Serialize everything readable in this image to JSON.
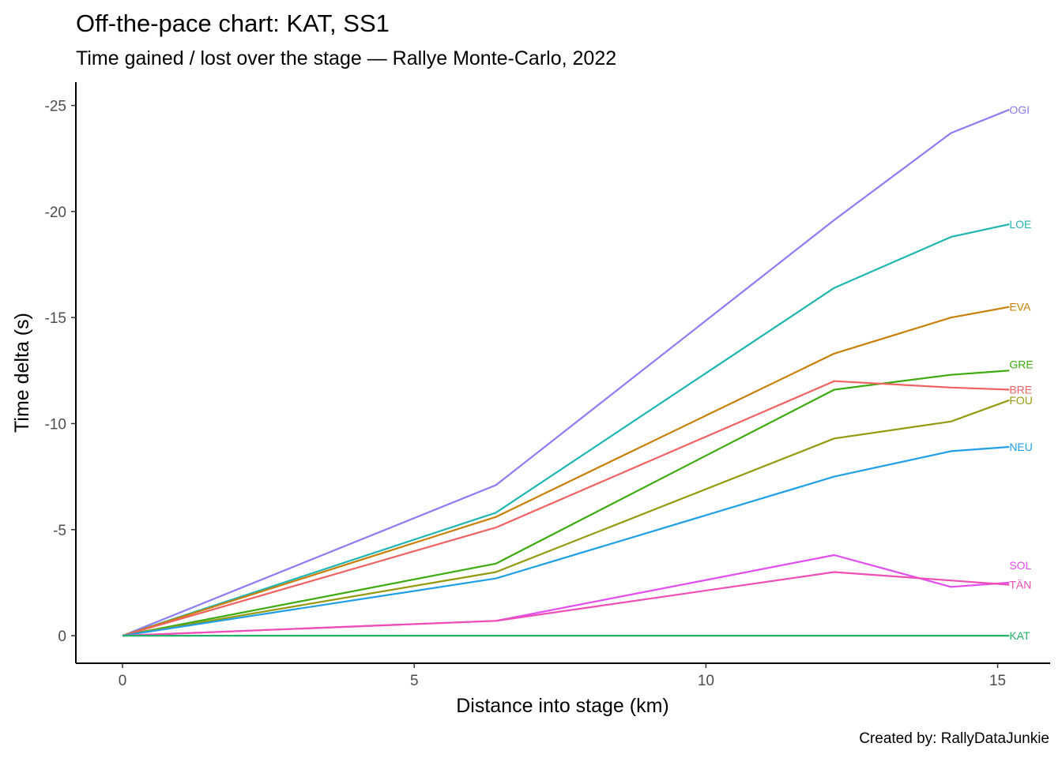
{
  "chart_data": {
    "type": "line",
    "title": "Off-the-pace chart: KAT, SS1",
    "subtitle": "Time gained / lost over the stage — Rallye Monte-Carlo, 2022",
    "xlabel": "Distance into stage (km)",
    "ylabel": "Time delta (s)",
    "caption": "Created by: RallyDataJunkie",
    "x": [
      0,
      6.4,
      12.2,
      14.2,
      15.2
    ],
    "xlim": [
      -0.8,
      15.9
    ],
    "ylim": [
      1.3,
      -26.1
    ],
    "y_reversed": true,
    "x_ticks": [
      0,
      5,
      10,
      15
    ],
    "y_ticks": [
      0,
      -5,
      -10,
      -15,
      -20,
      -25
    ],
    "grid": false,
    "legend": "none",
    "series": [
      {
        "name": "OGI",
        "color": "#8B7CF6",
        "values": [
          0,
          -7.1,
          -19.6,
          -23.7,
          -24.8
        ]
      },
      {
        "name": "LOE",
        "color": "#1FB6B2",
        "values": [
          0,
          -5.8,
          -16.4,
          -18.8,
          -19.4
        ]
      },
      {
        "name": "EVA",
        "color": "#C98009",
        "values": [
          0,
          -5.6,
          -13.3,
          -15.0,
          -15.5
        ]
      },
      {
        "name": "GRE",
        "color": "#3DAA10",
        "values": [
          0,
          -3.4,
          -11.6,
          -12.3,
          -12.5
        ]
      },
      {
        "name": "BRE",
        "color": "#F06262",
        "values": [
          0,
          -5.1,
          -12.0,
          -11.7,
          -11.6
        ]
      },
      {
        "name": "FOU",
        "color": "#949A0D",
        "values": [
          0,
          -3.0,
          -9.3,
          -10.1,
          -11.1
        ]
      },
      {
        "name": "NEU",
        "color": "#1E9FE8",
        "values": [
          0,
          -2.7,
          -7.5,
          -8.7,
          -8.9
        ]
      },
      {
        "name": "SOL",
        "color": "#E24DF0",
        "values": [
          0,
          -0.7,
          -3.8,
          -2.3,
          -2.5
        ]
      },
      {
        "name": "TÄN",
        "color": "#F04DB6",
        "values": [
          0,
          -0.7,
          -3.0,
          -2.6,
          -2.4
        ]
      },
      {
        "name": "KAT",
        "color": "#22B36A",
        "values": [
          0,
          0,
          0,
          0,
          0
        ]
      }
    ]
  }
}
